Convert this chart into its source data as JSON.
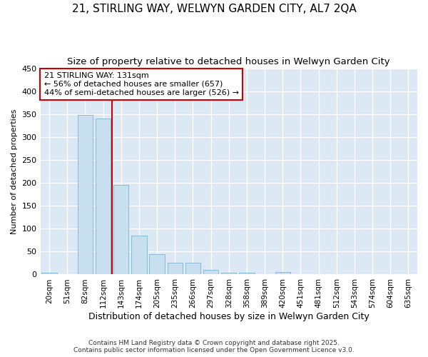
{
  "title": "21, STIRLING WAY, WELWYN GARDEN CITY, AL7 2QA",
  "subtitle": "Size of property relative to detached houses in Welwyn Garden City",
  "xlabel": "Distribution of detached houses by size in Welwyn Garden City",
  "ylabel": "Number of detached properties",
  "categories": [
    "20sqm",
    "51sqm",
    "82sqm",
    "112sqm",
    "143sqm",
    "174sqm",
    "205sqm",
    "235sqm",
    "266sqm",
    "297sqm",
    "328sqm",
    "358sqm",
    "389sqm",
    "420sqm",
    "451sqm",
    "481sqm",
    "512sqm",
    "543sqm",
    "574sqm",
    "604sqm",
    "635sqm"
  ],
  "values": [
    4,
    0,
    348,
    340,
    196,
    85,
    45,
    25,
    25,
    10,
    4,
    4,
    0,
    5,
    0,
    0,
    0,
    0,
    0,
    0,
    0
  ],
  "bar_color": "#c8dff0",
  "bar_edgecolor": "#7ab4d0",
  "vline_x": 3.5,
  "vline_color": "#cc0000",
  "annotation_text": "21 STIRLING WAY: 131sqm\n← 56% of detached houses are smaller (657)\n44% of semi-detached houses are larger (526) →",
  "annotation_box_color": "#ffffff",
  "annotation_box_edgecolor": "#cc0000",
  "ylim": [
    0,
    450
  ],
  "yticks": [
    0,
    50,
    100,
    150,
    200,
    250,
    300,
    350,
    400,
    450
  ],
  "footnote1": "Contains HM Land Registry data © Crown copyright and database right 2025.",
  "footnote2": "Contains public sector information licensed under the Open Government Licence v3.0.",
  "bg_color": "#dde8f5",
  "title_fontsize": 11,
  "subtitle_fontsize": 9.5,
  "annotation_fontsize": 8,
  "ylabel_fontsize": 8,
  "xlabel_fontsize": 9,
  "footnote_fontsize": 6.5
}
